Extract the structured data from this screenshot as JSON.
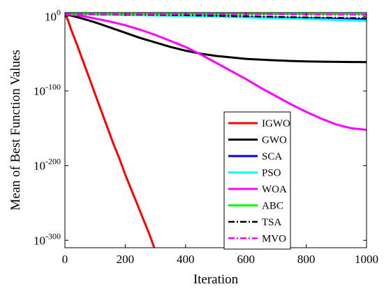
{
  "chart_data": {
    "type": "line",
    "xlabel": "Iteration",
    "ylabel": "Mean of Best Function Values",
    "xlim": [
      0,
      1000
    ],
    "ylim_exponent": [
      -310,
      5
    ],
    "y_scale": "log",
    "grid": false,
    "legend_placement": "center-right",
    "x_ticks": [
      {
        "value": 0,
        "label": "0"
      },
      {
        "value": 200,
        "label": "200"
      },
      {
        "value": 400,
        "label": "400"
      },
      {
        "value": 600,
        "label": "600"
      },
      {
        "value": 800,
        "label": "800"
      },
      {
        "value": 1000,
        "label": "1000"
      }
    ],
    "y_ticks": [
      {
        "exponent": 0,
        "base": "10",
        "sup": "0"
      },
      {
        "exponent": -100,
        "base": "10",
        "sup": "-100"
      },
      {
        "exponent": -200,
        "base": "10",
        "sup": "-200"
      },
      {
        "exponent": -300,
        "base": "10",
        "sup": "-300"
      }
    ],
    "series": [
      {
        "name": "IGWO",
        "color": "#ff0000",
        "dash": "solid",
        "width": 3,
        "x": [
          0,
          10,
          20,
          40,
          60,
          80,
          100,
          120,
          140,
          160,
          180,
          200,
          220,
          240,
          260,
          280,
          296
        ],
        "y_exp": [
          3,
          -5,
          -17,
          -38,
          -60,
          -82,
          -104,
          -126,
          -148,
          -170,
          -190,
          -212,
          -232,
          -252,
          -272,
          -292,
          -310
        ]
      },
      {
        "name": "GWO",
        "color": "#000000",
        "dash": "solid",
        "width": 3,
        "x": [
          0,
          50,
          100,
          150,
          200,
          250,
          300,
          350,
          400,
          450,
          500,
          550,
          600,
          650,
          700,
          750,
          800,
          850,
          900,
          950,
          1000
        ],
        "y_exp": [
          3,
          -2,
          -8,
          -15,
          -22,
          -29,
          -35,
          -41,
          -46,
          -50,
          -53,
          -55,
          -57,
          -58,
          -59,
          -59.8,
          -60.3,
          -60.7,
          -61,
          -61.2,
          -61.4
        ]
      },
      {
        "name": "SCA",
        "color": "#0000ff",
        "dash": "solid",
        "width": 3,
        "x": [
          0,
          200,
          400,
          600,
          800,
          1000
        ],
        "y_exp": [
          3,
          2,
          1,
          -1,
          -2.5,
          -4
        ]
      },
      {
        "name": "PSO",
        "color": "#00ffff",
        "dash": "solid",
        "width": 3,
        "x": [
          0,
          200,
          400,
          600,
          800,
          1000
        ],
        "y_exp": [
          3,
          2,
          0.5,
          -1.5,
          -3.5,
          -6
        ]
      },
      {
        "name": "WOA",
        "color": "#ff00ff",
        "dash": "solid",
        "width": 3,
        "x": [
          0,
          50,
          100,
          150,
          200,
          250,
          300,
          350,
          400,
          450,
          500,
          550,
          600,
          650,
          700,
          750,
          800,
          850,
          900,
          950,
          1000
        ],
        "y_exp": [
          3,
          1,
          -3,
          -7,
          -12,
          -18,
          -25,
          -33,
          -41,
          -51,
          -62,
          -73,
          -84,
          -96,
          -107,
          -118,
          -128,
          -137,
          -145,
          -150,
          -152
        ]
      },
      {
        "name": "ABC",
        "color": "#00ff00",
        "dash": "solid",
        "width": 3,
        "x": [
          0,
          200,
          400,
          600,
          800,
          1000
        ],
        "y_exp": [
          3,
          3,
          3,
          3,
          3,
          3
        ]
      },
      {
        "name": "TSA",
        "color": "#000000",
        "dash": "dashdot",
        "width": 2.5,
        "x": [
          0,
          200,
          400,
          600,
          800,
          1000
        ],
        "y_exp": [
          3,
          2.5,
          1.5,
          0,
          -1.5,
          -2.5
        ]
      },
      {
        "name": "MVO",
        "color": "#ff00ff",
        "dash": "dashdot",
        "width": 2.5,
        "x": [
          0,
          200,
          400,
          600,
          800,
          1000
        ],
        "y_exp": [
          3,
          3,
          3,
          3,
          2.5,
          2
        ]
      }
    ]
  }
}
